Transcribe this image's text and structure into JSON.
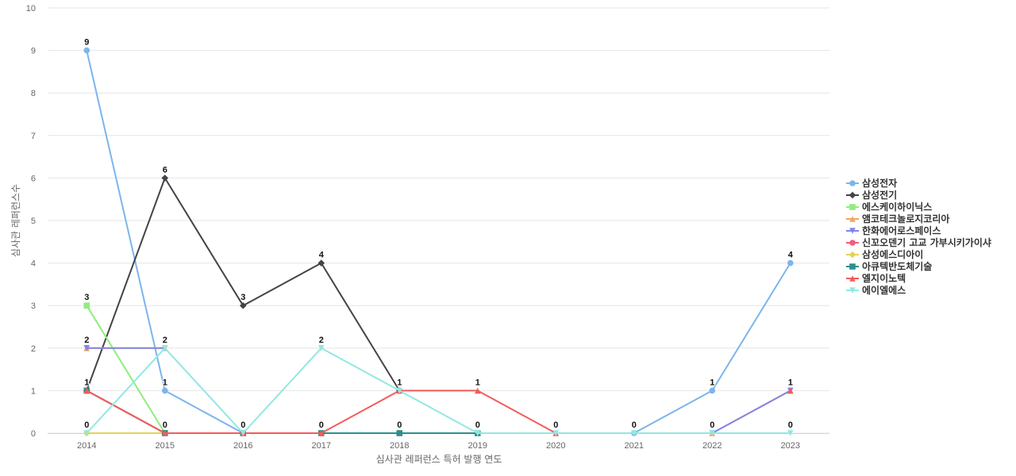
{
  "chart_data": {
    "type": "line",
    "xlabel": "심사관 레퍼런스 특허 발행 연도",
    "ylabel": "심사관 레퍼런스수",
    "ylim": [
      0,
      10
    ],
    "yticks": [
      0,
      1,
      2,
      3,
      4,
      5,
      6,
      7,
      8,
      9,
      10
    ],
    "categories": [
      "2014",
      "2015",
      "2016",
      "2017",
      "2018",
      "2019",
      "2020",
      "2021",
      "2022",
      "2023"
    ],
    "grid": true,
    "legend_position": "right",
    "series": [
      {
        "name": "삼성전자",
        "color": "#7cb5ec",
        "marker": "circle",
        "values": [
          9,
          1,
          0,
          0,
          null,
          null,
          null,
          0,
          1,
          4
        ]
      },
      {
        "name": "삼성전기",
        "color": "#434348",
        "marker": "diamond",
        "values": [
          1,
          6,
          3,
          4,
          1,
          null,
          null,
          null,
          null,
          null
        ]
      },
      {
        "name": "에스케이하이닉스",
        "color": "#90ed7d",
        "marker": "square",
        "values": [
          3,
          0,
          null,
          null,
          null,
          null,
          null,
          null,
          null,
          null
        ]
      },
      {
        "name": "앰코테크놀로지코리아",
        "color": "#f7a35c",
        "marker": "triangle",
        "values": [
          2,
          2,
          null,
          null,
          null,
          null,
          null,
          null,
          0,
          1
        ]
      },
      {
        "name": "한화에어로스페이스",
        "color": "#8085e9",
        "marker": "triangle-down",
        "values": [
          2,
          2,
          null,
          null,
          null,
          null,
          null,
          null,
          0,
          1
        ]
      },
      {
        "name": "신꼬오덴기 고교 가부시키가이샤",
        "color": "#f15c80",
        "marker": "circle",
        "values": [
          1,
          0,
          null,
          null,
          null,
          null,
          null,
          null,
          null,
          null
        ]
      },
      {
        "name": "삼성에스디아이",
        "color": "#e4d354",
        "marker": "diamond",
        "values": [
          0,
          0,
          null,
          null,
          null,
          null,
          null,
          null,
          null,
          null
        ]
      },
      {
        "name": "아큐텍반도체기술",
        "color": "#2b908f",
        "marker": "square",
        "values": [
          1,
          0,
          0,
          0,
          0,
          0,
          null,
          null,
          null,
          null
        ]
      },
      {
        "name": "엘지이노텍",
        "color": "#f45b5b",
        "marker": "triangle",
        "values": [
          1,
          0,
          0,
          0,
          1,
          1,
          0,
          null,
          null,
          1
        ]
      },
      {
        "name": "에이엘에스",
        "color": "#91e8e1",
        "marker": "triangle-down",
        "values": [
          0,
          2,
          0,
          2,
          1,
          0,
          0,
          0,
          0,
          0
        ]
      }
    ],
    "data_labels": [
      {
        "x": "2014",
        "text": "9",
        "y": 9
      },
      {
        "x": "2014",
        "text": "3",
        "y": 3
      },
      {
        "x": "2014",
        "text": "2",
        "y": 2
      },
      {
        "x": "2014",
        "text": "1",
        "y": 1
      },
      {
        "x": "2014",
        "text": "0",
        "y": 0
      },
      {
        "x": "2015",
        "text": "6",
        "y": 6
      },
      {
        "x": "2015",
        "text": "2",
        "y": 2
      },
      {
        "x": "2015",
        "text": "1",
        "y": 1
      },
      {
        "x": "2015",
        "text": "0",
        "y": 0
      },
      {
        "x": "2016",
        "text": "3",
        "y": 3
      },
      {
        "x": "2016",
        "text": "0",
        "y": 0
      },
      {
        "x": "2017",
        "text": "4",
        "y": 4
      },
      {
        "x": "2017",
        "text": "2",
        "y": 2
      },
      {
        "x": "2017",
        "text": "0",
        "y": 0
      },
      {
        "x": "2018",
        "text": "1",
        "y": 1
      },
      {
        "x": "2018",
        "text": "0",
        "y": 0
      },
      {
        "x": "2019",
        "text": "1",
        "y": 1
      },
      {
        "x": "2019",
        "text": "0",
        "y": 0
      },
      {
        "x": "2020",
        "text": "0",
        "y": 0
      },
      {
        "x": "2021",
        "text": "0",
        "y": 0
      },
      {
        "x": "2022",
        "text": "1",
        "y": 1
      },
      {
        "x": "2022",
        "text": "0",
        "y": 0
      },
      {
        "x": "2023",
        "text": "4",
        "y": 4
      },
      {
        "x": "2023",
        "text": "1",
        "y": 1
      },
      {
        "x": "2023",
        "text": "0",
        "y": 0
      }
    ]
  }
}
